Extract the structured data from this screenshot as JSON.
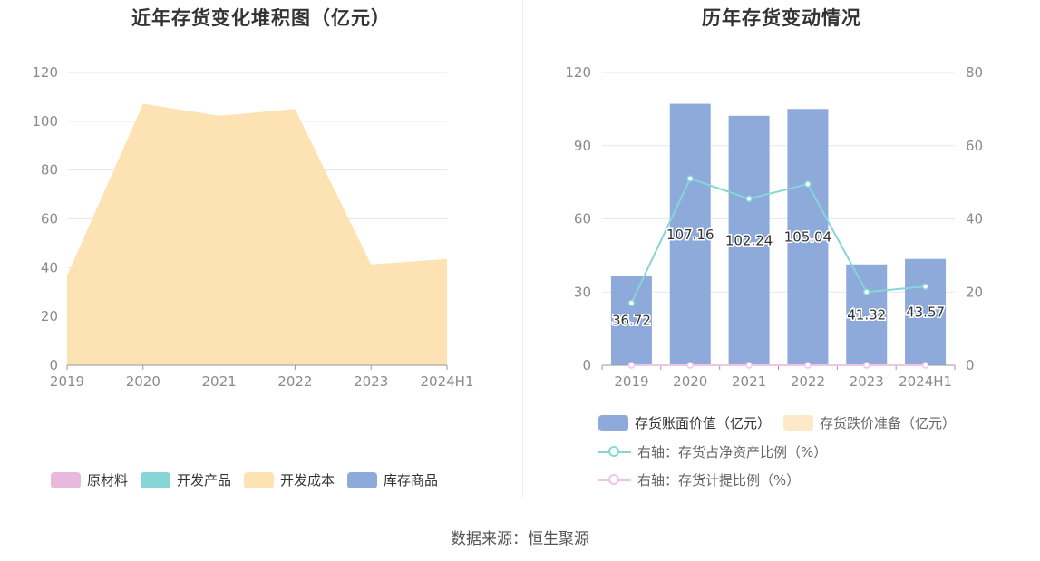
{
  "left_chart": {
    "title": "近年存货变化堆积图（亿元）",
    "legend": [
      {
        "label": "原材料",
        "color": "#e8b9dc"
      },
      {
        "label": "开发产品",
        "color": "#86d6d8"
      },
      {
        "label": "开发成本",
        "color": "#fde3b3"
      },
      {
        "label": "库存商品",
        "color": "#8eaadb"
      }
    ]
  },
  "right_chart": {
    "title": "历年存货变动情况",
    "legend": [
      {
        "label": "存货账面价值（亿元）",
        "color": "#8eaadb"
      },
      {
        "label": "存货跌价准备（亿元）",
        "color": "#fde8c8"
      },
      {
        "label": "右轴：存货占净资产比例（%）",
        "color": "#86d6d8"
      },
      {
        "label": "右轴：存货计提比例（%）",
        "color": "#f2c4e4"
      }
    ]
  },
  "footer": "数据来源：恒生聚源",
  "chart_data": [
    {
      "type": "area",
      "title": "近年存货变化堆积图（亿元）",
      "categories": [
        "2019",
        "2020",
        "2021",
        "2022",
        "2023",
        "2024H1"
      ],
      "ylim": [
        0,
        120
      ],
      "yticks": [
        0,
        20,
        40,
        60,
        80,
        100,
        120
      ],
      "grid": true,
      "legend_position": "bottom",
      "stacked": true,
      "series": [
        {
          "name": "原材料",
          "color": "#e8b9dc",
          "values": [
            0,
            0,
            0,
            0,
            0,
            0
          ]
        },
        {
          "name": "开发产品",
          "color": "#86d6d8",
          "values": [
            0,
            0,
            0,
            0,
            0,
            0
          ]
        },
        {
          "name": "开发成本",
          "color": "#fde3b3",
          "values": [
            36.72,
            107.16,
            102.24,
            105.04,
            41.32,
            43.57
          ]
        },
        {
          "name": "库存商品",
          "color": "#8eaadb",
          "values": [
            0,
            0,
            0,
            0,
            0,
            0
          ]
        }
      ]
    },
    {
      "type": "bar",
      "title": "历年存货变动情况",
      "categories": [
        "2019",
        "2020",
        "2021",
        "2022",
        "2023",
        "2024H1"
      ],
      "ylim": [
        0,
        120
      ],
      "yticks": [
        0,
        30,
        60,
        90,
        120
      ],
      "y2lim": [
        0,
        80
      ],
      "y2ticks": [
        0,
        20,
        40,
        60,
        80
      ],
      "grid": true,
      "legend_position": "bottom",
      "series": [
        {
          "name": "存货账面价值（亿元）",
          "type": "bar",
          "axis": "left",
          "color": "#8eaadb",
          "values": [
            36.72,
            107.16,
            102.24,
            105.04,
            41.32,
            43.57
          ],
          "labels": [
            "36.72",
            "107.16",
            "102.24",
            "105.04",
            "41.32",
            "43.57"
          ]
        },
        {
          "name": "存货跌价准备（亿元）",
          "type": "bar",
          "axis": "left",
          "color": "#fde8c8",
          "values": [
            0,
            0,
            0,
            0,
            0,
            0
          ]
        },
        {
          "name": "右轴：存货占净资产比例（%）",
          "type": "line",
          "axis": "right",
          "color": "#86d6d8",
          "values": [
            17,
            51,
            45.5,
            49.5,
            20,
            21.5
          ]
        },
        {
          "name": "右轴：存货计提比例（%）",
          "type": "line",
          "axis": "right",
          "color": "#f2c4e4",
          "values": [
            0,
            0,
            0,
            0,
            0,
            0
          ]
        }
      ]
    }
  ]
}
